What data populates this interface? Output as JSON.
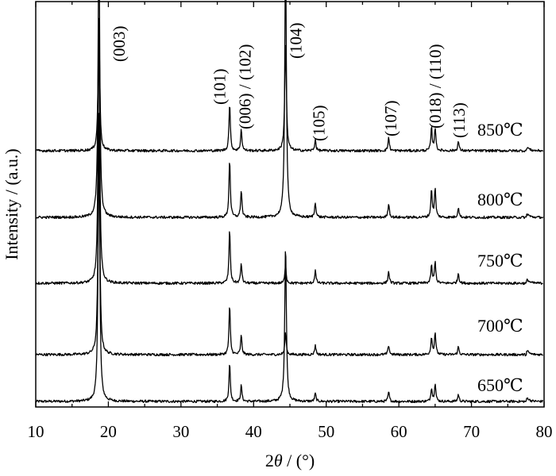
{
  "chart_data": {
    "type": "line",
    "title": "",
    "xlabel_prefix": "2",
    "xlabel_symbol": "θ",
    "xlabel_suffix": " / (°)",
    "ylabel": "Intensity / (a.u.)",
    "xlim": [
      10,
      80
    ],
    "x_ticks": [
      10,
      20,
      30,
      40,
      50,
      60,
      70,
      80
    ],
    "y_ticks_shown": false,
    "grid": false,
    "series": [
      {
        "name": "650℃",
        "peaks": [
          {
            "x": 18.7,
            "h": 350
          },
          {
            "x": 36.7,
            "h": 48
          },
          {
            "x": 38.3,
            "h": 20
          },
          {
            "x": 44.4,
            "h": 200
          },
          {
            "x": 48.5,
            "h": 10
          },
          {
            "x": 58.6,
            "h": 12
          },
          {
            "x": 64.5,
            "h": 17
          },
          {
            "x": 65.0,
            "h": 23
          },
          {
            "x": 68.2,
            "h": 9
          }
        ]
      },
      {
        "name": "700℃",
        "peaks": [
          {
            "x": 18.7,
            "h": 310
          },
          {
            "x": 36.7,
            "h": 62
          },
          {
            "x": 38.3,
            "h": 24
          },
          {
            "x": 44.4,
            "h": 28
          },
          {
            "x": 48.5,
            "h": 12
          },
          {
            "x": 58.6,
            "h": 12
          },
          {
            "x": 64.5,
            "h": 22
          },
          {
            "x": 65.0,
            "h": 28
          },
          {
            "x": 68.2,
            "h": 10
          }
        ]
      },
      {
        "name": "750℃",
        "peaks": [
          {
            "x": 18.7,
            "h": 340
          },
          {
            "x": 36.7,
            "h": 68
          },
          {
            "x": 38.3,
            "h": 25
          },
          {
            "x": 44.4,
            "h": 23
          },
          {
            "x": 48.5,
            "h": 16
          },
          {
            "x": 58.6,
            "h": 15
          },
          {
            "x": 64.5,
            "h": 22
          },
          {
            "x": 65.0,
            "h": 27
          },
          {
            "x": 68.2,
            "h": 13
          }
        ]
      },
      {
        "name": "800℃",
        "peaks": [
          {
            "x": 18.7,
            "h": 370
          },
          {
            "x": 36.7,
            "h": 74
          },
          {
            "x": 38.3,
            "h": 34
          },
          {
            "x": 44.4,
            "h": 340
          },
          {
            "x": 48.5,
            "h": 19
          },
          {
            "x": 58.6,
            "h": 18
          },
          {
            "x": 64.5,
            "h": 35
          },
          {
            "x": 65.0,
            "h": 36
          },
          {
            "x": 68.2,
            "h": 13
          }
        ]
      },
      {
        "name": "850℃",
        "peaks": [
          {
            "x": 18.7,
            "h": 168
          },
          {
            "x": 36.7,
            "h": 60
          },
          {
            "x": 38.3,
            "h": 27
          },
          {
            "x": 44.4,
            "h": 140
          },
          {
            "x": 48.5,
            "h": 14
          },
          {
            "x": 58.6,
            "h": 17
          },
          {
            "x": 64.5,
            "h": 29
          },
          {
            "x": 65.0,
            "h": 29
          },
          {
            "x": 68.2,
            "h": 12
          }
        ]
      }
    ],
    "peak_labels": [
      {
        "x": 21.5,
        "text": "(003)"
      },
      {
        "x": 35.3,
        "text": "(101)"
      },
      {
        "x": 38.8,
        "text": "(006) / (102)"
      },
      {
        "x": 45.8,
        "text": "(104)"
      },
      {
        "x": 49.0,
        "text": "(105)"
      },
      {
        "x": 58.9,
        "text": "(107)"
      },
      {
        "x": 65.0,
        "text": "(018) / (110)"
      },
      {
        "x": 68.3,
        "text": "(113)"
      }
    ]
  }
}
